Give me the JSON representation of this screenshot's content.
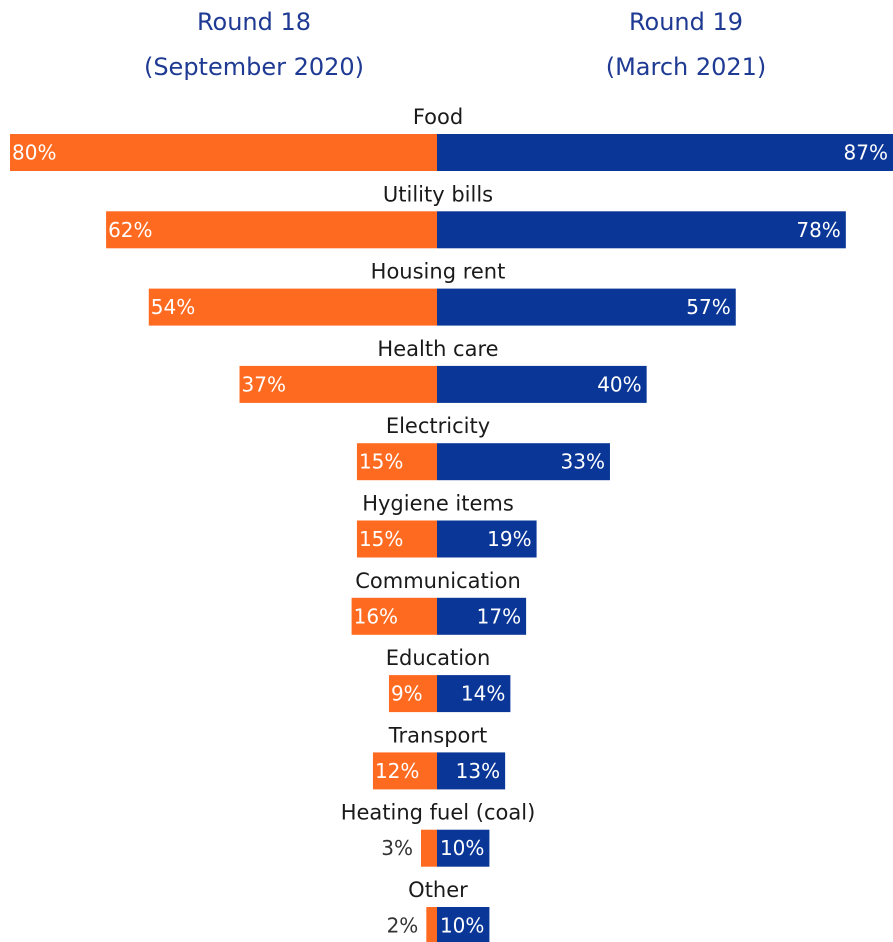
{
  "headers": {
    "left_line1": "Round 18",
    "left_line2": "(September 2020)",
    "right_line1": "Round 19",
    "right_line2": "(March 2021)"
  },
  "colors": {
    "left": "#ff6a21",
    "right": "#0a3797",
    "header_text": "#1f3a93",
    "category_text": "#1a1a1a",
    "inside_label": "#ffffff",
    "outside_label": "#333333"
  },
  "chart_data": {
    "type": "bar",
    "orientation": "horizontal-diverging",
    "categories": [
      "Food",
      "Utility bills",
      "Housing rent",
      "Health care",
      "Electricity",
      "Hygiene items",
      "Communication",
      "Education",
      "Transport",
      "Heating fuel (coal)",
      "Other"
    ],
    "series": [
      {
        "name": "Round 18 (September 2020)",
        "values": [
          80,
          62,
          54,
          37,
          15,
          15,
          16,
          9,
          12,
          3,
          2
        ],
        "labels": [
          "80%",
          "62%",
          "54%",
          "37%",
          "15%",
          "15%",
          "16%",
          "9%",
          "12%",
          "3%",
          "2%"
        ]
      },
      {
        "name": "Round 19 (March 2021)",
        "values": [
          87,
          78,
          57,
          40,
          33,
          19,
          17,
          14,
          13,
          10,
          10
        ],
        "labels": [
          "87%",
          "78%",
          "57%",
          "40%",
          "33%",
          "19%",
          "17%",
          "14%",
          "13%",
          "10%",
          "10%"
        ]
      }
    ],
    "unit": "%",
    "xlim": [
      0,
      100
    ],
    "grid": false
  }
}
